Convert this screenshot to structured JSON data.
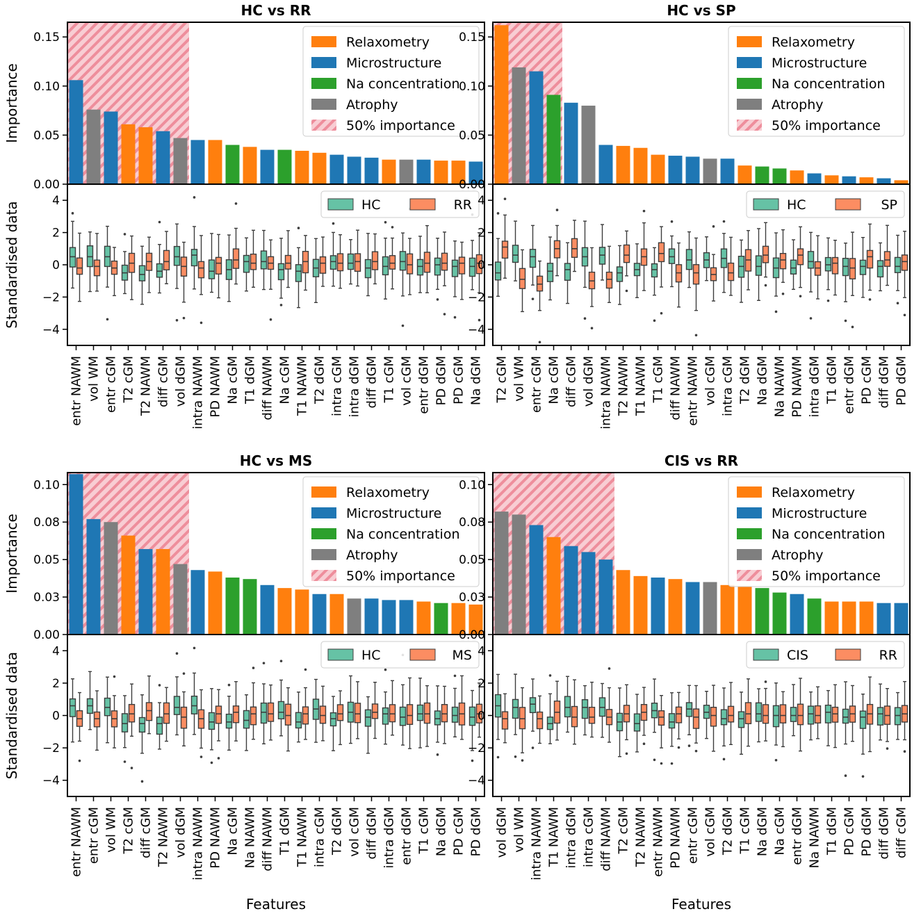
{
  "figure": {
    "xlabel": "Features"
  },
  "colors": {
    "Relaxometry": "#ff7f0e",
    "Microstructure": "#1f77b4",
    "Na concentration": "#2ca02c",
    "Atrophy": "#7f7f7f",
    "hatch_fill": "#f8cdd3",
    "hatch_line": "#ee8e9c",
    "box_group1": "#66c2a5",
    "box_group2": "#fc8d62"
  },
  "legend_importance": [
    "Relaxometry",
    "Microstructure",
    "Na concentration",
    "Atrophy",
    "50% importance"
  ],
  "chart_data": [
    {
      "type": "bar",
      "title": "HC vs RR",
      "ylabel": "Importance",
      "ylim": [
        0,
        0.165
      ],
      "yticks": [
        0,
        0.05,
        0.1,
        0.15
      ],
      "ytick_labels": [
        "0.00",
        "0.05",
        "0.10",
        "0.15"
      ],
      "features": [
        "entr NAWM",
        "vol WM",
        "entr cGM",
        "T2 cGM",
        "T2 NAWM",
        "diff cGM",
        "vol dGM",
        "intra NAWM",
        "PD NAWM",
        "Na cGM",
        "T1 dGM",
        "diff NAWM",
        "Na cGM",
        "T1 NAWM",
        "T2 dGM",
        "intra cGM",
        "intra dGM",
        "diff dGM",
        "T1 cGM",
        "vol cGM",
        "entr dGM",
        "PD dGM",
        "PD cGM",
        "Na dGM"
      ],
      "categories": [
        "Microstructure",
        "Atrophy",
        "Microstructure",
        "Relaxometry",
        "Relaxometry",
        "Microstructure",
        "Atrophy",
        "Microstructure",
        "Relaxometry",
        "Na concentration",
        "Relaxometry",
        "Microstructure",
        "Na concentration",
        "Relaxometry",
        "Relaxometry",
        "Microstructure",
        "Microstructure",
        "Microstructure",
        "Relaxometry",
        "Atrophy",
        "Microstructure",
        "Relaxometry",
        "Relaxometry",
        "Microstructure"
      ],
      "values": [
        0.106,
        0.076,
        0.074,
        0.061,
        0.058,
        0.054,
        0.047,
        0.045,
        0.045,
        0.04,
        0.038,
        0.035,
        0.035,
        0.034,
        0.032,
        0.03,
        0.028,
        0.027,
        0.025,
        0.025,
        0.025,
        0.024,
        0.024,
        0.023
      ],
      "fifty_percent_count": 7,
      "box": {
        "ylabel": "Standardised data",
        "ylim": [
          -5,
          5
        ],
        "yticks": [
          -4,
          -2,
          0,
          2,
          4
        ],
        "ytick_labels": [
          "−4",
          "−2",
          "0",
          "2",
          "4"
        ],
        "groups": [
          "HC",
          "RR"
        ],
        "medians1": [
          0.5,
          0.5,
          0.5,
          -0.5,
          -0.6,
          -0.4,
          0.5,
          0.6,
          -0.4,
          -0.3,
          0.2,
          0.2,
          -0.3,
          -0.4,
          -0.2,
          0.2,
          0.1,
          -0.2,
          -0.1,
          0.2,
          -0.1,
          0.0,
          -0.1,
          -0.1
        ],
        "medians2": [
          -0.2,
          -0.1,
          -0.2,
          0.1,
          0.2,
          0.2,
          -0.1,
          -0.2,
          0.1,
          0.3,
          0.1,
          0.1,
          0.1,
          0.2,
          0.1,
          0.1,
          0.2,
          0.2,
          0.1,
          0.0,
          0.1,
          0.1,
          0.1,
          0.1
        ]
      }
    },
    {
      "type": "bar",
      "title": "HC vs SP",
      "ylabel": "",
      "ylim": [
        0,
        0.165
      ],
      "yticks": [
        0,
        0.05,
        0.1,
        0.15
      ],
      "ytick_labels": [
        "0.00",
        "0.05",
        "0.10",
        "0.15"
      ],
      "features": [
        "T2 cGM",
        "vol WM",
        "entr cGM",
        "Na cGM",
        "diff cGM",
        "vol dGM",
        "intra NAWM",
        "T2 NAWM",
        "T1 NAWM",
        "T1 cGM",
        "diff NAWM",
        "entr NAWM",
        "vol cGM",
        "intra cGM",
        "T2 dGM",
        "Na dGM",
        "Na NAWM",
        "PD NAWM",
        "intra dGM",
        "T1 dGM",
        "entr dGM",
        "PD cGM",
        "diff dGM",
        "PD dGM"
      ],
      "categories": [
        "Relaxometry",
        "Atrophy",
        "Microstructure",
        "Na concentration",
        "Microstructure",
        "Atrophy",
        "Microstructure",
        "Relaxometry",
        "Relaxometry",
        "Relaxometry",
        "Microstructure",
        "Microstructure",
        "Atrophy",
        "Microstructure",
        "Relaxometry",
        "Na concentration",
        "Na concentration",
        "Relaxometry",
        "Microstructure",
        "Relaxometry",
        "Microstructure",
        "Relaxometry",
        "Microstructure",
        "Relaxometry"
      ],
      "values": [
        0.162,
        0.119,
        0.115,
        0.091,
        0.083,
        0.08,
        0.04,
        0.039,
        0.037,
        0.03,
        0.029,
        0.028,
        0.026,
        0.026,
        0.019,
        0.018,
        0.016,
        0.014,
        0.011,
        0.009,
        0.008,
        0.007,
        0.006,
        0.004
      ],
      "fifty_percent_count": 4,
      "box": {
        "ylabel": "",
        "ylim": [
          -5,
          5
        ],
        "yticks": [
          -4,
          -2,
          0,
          2,
          4
        ],
        "ytick_labels": [
          "−4",
          "−2",
          "0",
          "2",
          "4"
        ],
        "groups": [
          "HC",
          "SP"
        ],
        "medians1": [
          -0.5,
          0.6,
          0.5,
          -0.4,
          -0.3,
          0.5,
          0.6,
          -0.5,
          -0.3,
          -0.3,
          0.5,
          0.3,
          0.3,
          0.4,
          -0.1,
          -0.1,
          -0.2,
          -0.2,
          0.2,
          0.0,
          -0.1,
          -0.1,
          -0.1,
          -0.1
        ],
        "medians2": [
          1.1,
          -0.9,
          -1.2,
          1.0,
          1.0,
          -1.0,
          -0.9,
          0.6,
          0.5,
          0.7,
          -0.5,
          -0.5,
          -0.6,
          -0.5,
          0.3,
          0.6,
          0.3,
          0.6,
          -0.2,
          0.1,
          -0.2,
          0.5,
          0.3,
          0.2
        ]
      }
    },
    {
      "type": "bar",
      "title": "HC vs MS",
      "ylabel": "Importance",
      "ylim": [
        0,
        0.108
      ],
      "yticks": [
        0,
        0.025,
        0.05,
        0.075,
        0.1
      ],
      "ytick_labels": [
        "0.00",
        "0.03",
        "0.05",
        "0.08",
        "0.10"
      ],
      "features": [
        "entr NAWM",
        "entr cGM",
        "vol WM",
        "T2 cGM",
        "diff cGM",
        "T2 NAWM",
        "vol dGM",
        "intra NAWM",
        "PD NAWM",
        "Na cGM",
        "Na NAWM",
        "diff NAWM",
        "T1 dGM",
        "T1 NAWM",
        "intra cGM",
        "T2 dGM",
        "vol cGM",
        "diff dGM",
        "intra dGM",
        "entr dGM",
        "T1 cGM",
        "Na dGM",
        "PD cGM",
        "PD dGM"
      ],
      "categories": [
        "Microstructure",
        "Microstructure",
        "Atrophy",
        "Relaxometry",
        "Microstructure",
        "Relaxometry",
        "Atrophy",
        "Microstructure",
        "Relaxometry",
        "Na concentration",
        "Na concentration",
        "Microstructure",
        "Relaxometry",
        "Relaxometry",
        "Microstructure",
        "Relaxometry",
        "Atrophy",
        "Microstructure",
        "Microstructure",
        "Microstructure",
        "Relaxometry",
        "Na concentration",
        "Relaxometry",
        "Relaxometry"
      ],
      "values": [
        0.107,
        0.077,
        0.075,
        0.066,
        0.057,
        0.057,
        0.047,
        0.043,
        0.042,
        0.038,
        0.037,
        0.033,
        0.031,
        0.03,
        0.027,
        0.027,
        0.024,
        0.024,
        0.023,
        0.023,
        0.022,
        0.021,
        0.021,
        0.02
      ],
      "fifty_percent_count": 7,
      "box": {
        "ylabel": "Standardised data",
        "ylim": [
          -5,
          5
        ],
        "yticks": [
          -4,
          -2,
          0,
          2,
          4
        ],
        "ytick_labels": [
          "−4",
          "−2",
          "0",
          "2",
          "4"
        ],
        "groups": [
          "HC",
          "MS"
        ],
        "medians1": [
          0.6,
          0.6,
          0.5,
          -0.5,
          -0.5,
          -0.5,
          0.5,
          0.6,
          -0.4,
          -0.4,
          -0.3,
          0.2,
          0.2,
          -0.4,
          0.4,
          -0.2,
          0.2,
          -0.1,
          0.1,
          -0.1,
          0.1,
          -0.2,
          0.0,
          -0.1
        ],
        "medians2": [
          -0.2,
          -0.2,
          -0.2,
          0.1,
          0.3,
          0.1,
          -0.1,
          -0.2,
          0.1,
          0.2,
          0.1,
          0.1,
          0.0,
          0.1,
          0.0,
          0.1,
          0.1,
          0.2,
          0.1,
          0.0,
          0.1,
          0.1,
          0.1,
          0.1
        ]
      }
    },
    {
      "type": "bar",
      "title": "CIS vs RR",
      "ylabel": "",
      "ylim": [
        0,
        0.108
      ],
      "yticks": [
        0,
        0.025,
        0.05,
        0.075,
        0.1
      ],
      "ytick_labels": [
        "0.00",
        "0.03",
        "0.05",
        "0.08",
        "0.10"
      ],
      "features": [
        "vol dGM",
        "vol WM",
        "intra NAWM",
        "T1 NAWM",
        "intra dGM",
        "intra cGM",
        "diff NAWM",
        "T2 cGM",
        "T2 NAWM",
        "entr NAWM",
        "PD NAWM",
        "entr cGM",
        "vol cGM",
        "T2 dGM",
        "T1 cGM",
        "Na dGM",
        "Na cGM",
        "entr dGM",
        "Na NAWM",
        "T1 dGM",
        "PD cGM",
        "PD dGM",
        "diff dGM",
        "diff cGM"
      ],
      "categories": [
        "Atrophy",
        "Atrophy",
        "Microstructure",
        "Relaxometry",
        "Microstructure",
        "Microstructure",
        "Microstructure",
        "Relaxometry",
        "Relaxometry",
        "Microstructure",
        "Relaxometry",
        "Microstructure",
        "Atrophy",
        "Relaxometry",
        "Relaxometry",
        "Na concentration",
        "Na concentration",
        "Microstructure",
        "Na concentration",
        "Relaxometry",
        "Relaxometry",
        "Relaxometry",
        "Microstructure",
        "Microstructure"
      ],
      "values": [
        0.082,
        0.08,
        0.073,
        0.065,
        0.059,
        0.055,
        0.05,
        0.043,
        0.039,
        0.038,
        0.037,
        0.035,
        0.035,
        0.033,
        0.032,
        0.031,
        0.028,
        0.027,
        0.024,
        0.022,
        0.022,
        0.022,
        0.021,
        0.021
      ],
      "fifty_percent_count": 7,
      "box": {
        "ylabel": "",
        "ylim": [
          -5,
          5
        ],
        "yticks": [
          -4,
          -2,
          0,
          2,
          4
        ],
        "ytick_labels": [
          "−4",
          "−2",
          "0",
          "2",
          "4"
        ],
        "groups": [
          "CIS",
          "RR"
        ],
        "medians1": [
          0.6,
          0.5,
          0.7,
          -0.5,
          0.5,
          0.5,
          0.5,
          -0.4,
          -0.5,
          0.3,
          -0.4,
          0.4,
          0.2,
          -0.2,
          -0.2,
          0.1,
          0.0,
          0.0,
          0.1,
          0.2,
          -0.1,
          -0.1,
          0.1,
          0.0
        ],
        "medians2": [
          -0.2,
          -0.2,
          -0.2,
          0.2,
          -0.1,
          -0.1,
          -0.1,
          0.1,
          0.2,
          -0.1,
          0.1,
          -0.1,
          0.0,
          0.0,
          0.1,
          0.0,
          0.0,
          0.0,
          0.0,
          0.1,
          0.1,
          0.1,
          0.0,
          0.1
        ]
      }
    }
  ]
}
